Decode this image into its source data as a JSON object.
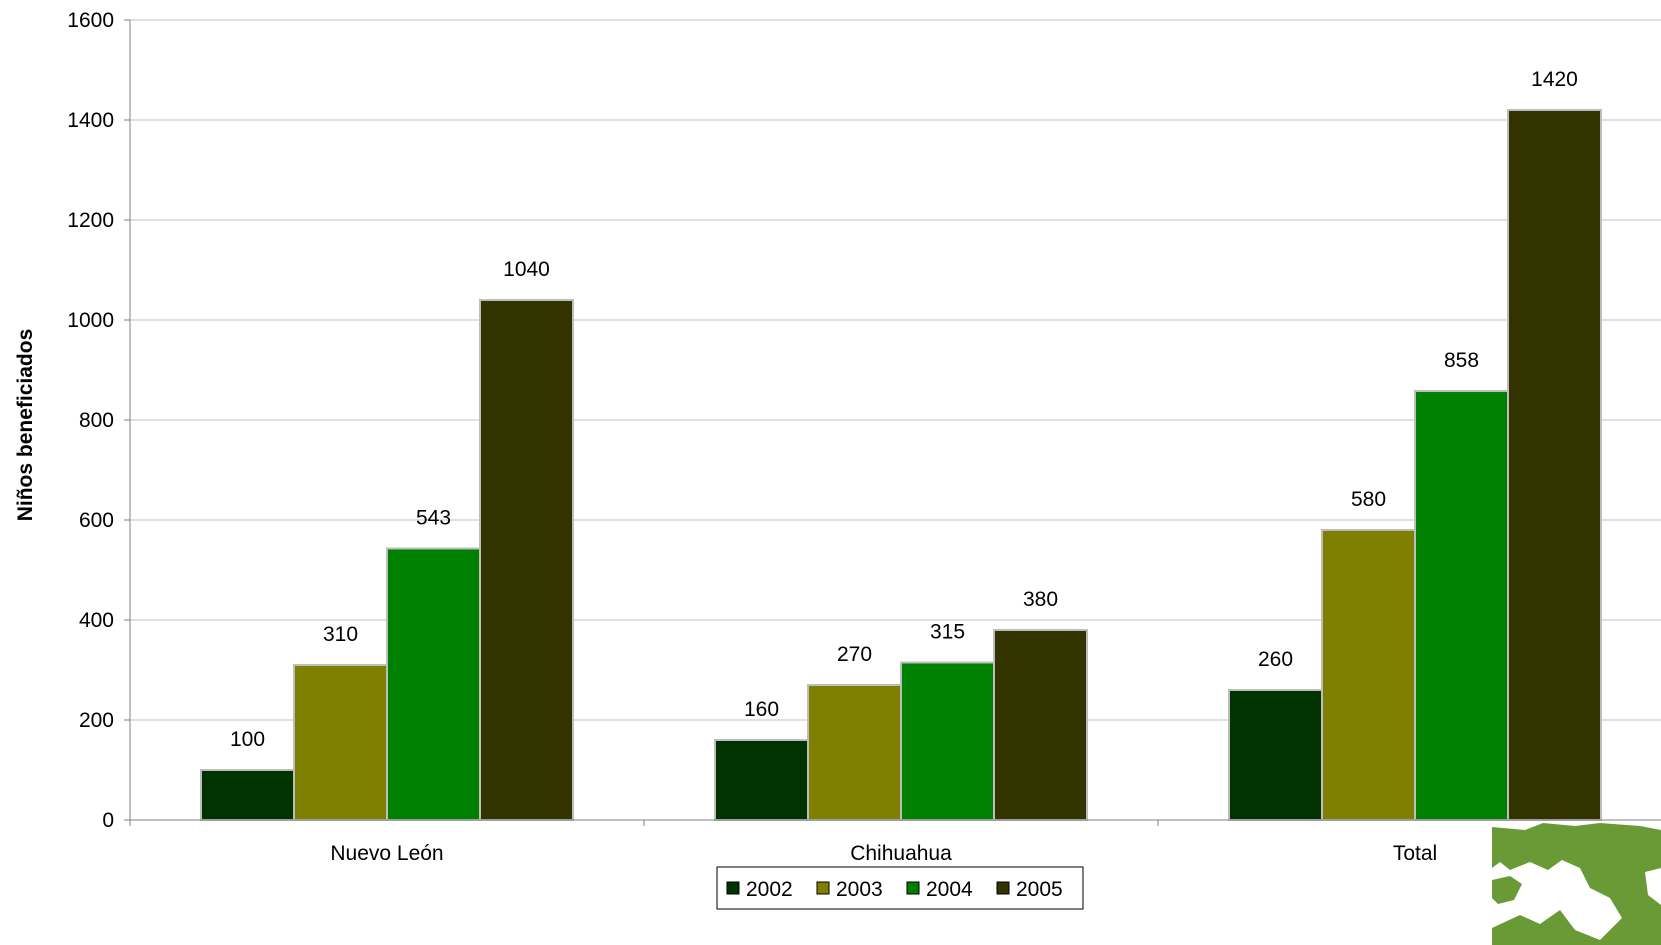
{
  "chart_data": {
    "type": "bar",
    "title": "",
    "xlabel": "",
    "ylabel": "Niños beneficiados",
    "ylim": [
      0,
      1600
    ],
    "yticks": [
      0,
      200,
      400,
      600,
      800,
      1000,
      1200,
      1400,
      1600
    ],
    "grid": true,
    "legend_position": "bottom",
    "categories": [
      "Nuevo León",
      "Chihuahua",
      "Total"
    ],
    "series": [
      {
        "name": "2002",
        "color": "#003300",
        "values": [
          100,
          160,
          260
        ]
      },
      {
        "name": "2003",
        "color": "#808000",
        "values": [
          310,
          270,
          580
        ]
      },
      {
        "name": "2004",
        "color": "#008000",
        "values": [
          543,
          315,
          858
        ]
      },
      {
        "name": "2005",
        "color": "#333300",
        "values": [
          1040,
          380,
          1420
        ]
      }
    ]
  },
  "logo": {
    "name": "green-emblem-logo",
    "color": "#6a9a35"
  }
}
